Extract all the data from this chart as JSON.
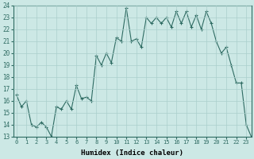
{
  "x_data": [
    0,
    1,
    2,
    3,
    4,
    5,
    6,
    7,
    8,
    9,
    10,
    11,
    12,
    13,
    14,
    15,
    16,
    17,
    18,
    19,
    20,
    21,
    22,
    23,
    24,
    25,
    26,
    27,
    28,
    29,
    30,
    31,
    32,
    33,
    34,
    35,
    36,
    37,
    38,
    39,
    40,
    41,
    42,
    43,
    44,
    45,
    46,
    47
  ],
  "y_data": [
    16.5,
    15.5,
    16.0,
    14.0,
    13.8,
    14.2,
    13.8,
    13.0,
    15.5,
    15.3,
    16.0,
    15.3,
    17.3,
    16.2,
    16.3,
    16.0,
    19.8,
    19.0,
    20.0,
    19.2,
    21.3,
    21.0,
    23.8,
    21.0,
    21.2,
    20.5,
    23.0,
    22.5,
    23.0,
    22.5,
    23.0,
    22.2,
    23.5,
    22.5,
    23.5,
    22.2,
    23.2,
    22.0,
    23.5,
    22.5,
    21.0,
    20.0,
    20.5,
    19.0,
    17.5,
    17.5,
    14.0,
    13.0
  ],
  "x_scale": 0.5,
  "xlabel": "Humidex (Indice chaleur)",
  "ylim": [
    13,
    24
  ],
  "yticks": [
    13,
    14,
    15,
    16,
    17,
    18,
    19,
    20,
    21,
    22,
    23,
    24
  ],
  "xticks": [
    0,
    1,
    2,
    3,
    4,
    5,
    6,
    7,
    8,
    9,
    10,
    11,
    12,
    13,
    14,
    15,
    16,
    17,
    18,
    19,
    20,
    21,
    22,
    23
  ],
  "line_color": "#2e6b62",
  "bg_color": "#cce8e5",
  "grid_color": "#aacfcc"
}
